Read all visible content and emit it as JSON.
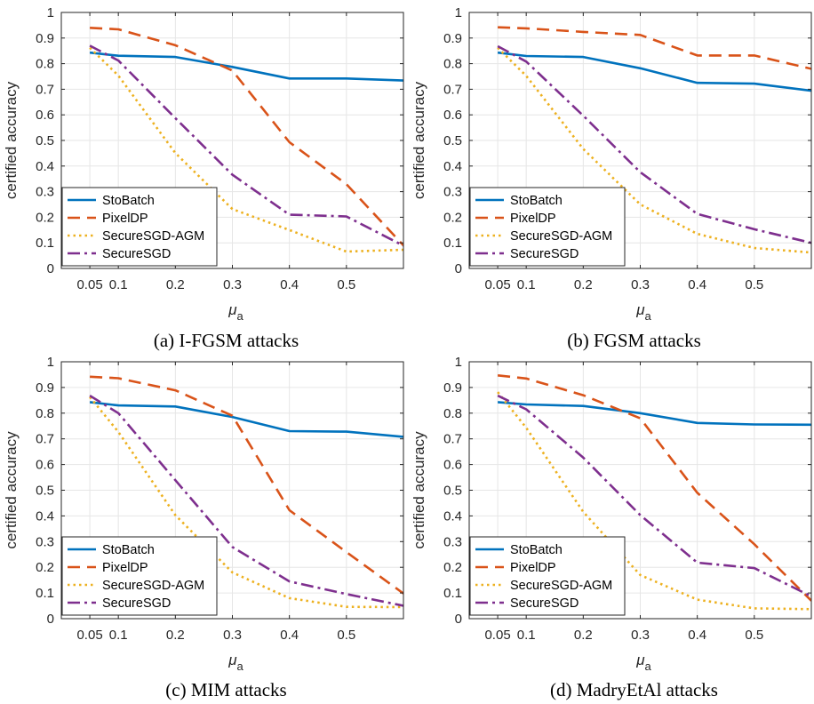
{
  "chart_data": [
    {
      "type": "line",
      "caption": "(a) I-FGSM attacks",
      "xlabel": "μ",
      "xlabel_sub": "a",
      "ylabel": "certified accuracy",
      "xlim": [
        0.0,
        0.6
      ],
      "ylim": [
        0,
        1
      ],
      "xticks": [
        0.05,
        0.1,
        0.2,
        0.3,
        0.4,
        0.5
      ],
      "xtick_labels": [
        "0.05",
        "0.1",
        "0.2",
        "0.3",
        "0.4",
        "0.5"
      ],
      "yticks": [
        0,
        0.1,
        0.2,
        0.3,
        0.4,
        0.5,
        0.6,
        0.7,
        0.8,
        0.9,
        1
      ],
      "ytick_labels": [
        "0",
        "0.1",
        "0.2",
        "0.3",
        "0.4",
        "0.5",
        "0.6",
        "0.7",
        "0.8",
        "0.9",
        "1"
      ],
      "grid": true,
      "legend_position": "bottom-left",
      "x": [
        0.05,
        0.1,
        0.2,
        0.3,
        0.4,
        0.5,
        0.6
      ],
      "series": [
        {
          "name": "StoBatch",
          "values": [
            0.843,
            0.831,
            0.826,
            0.787,
            0.742,
            0.742,
            0.734
          ]
        },
        {
          "name": "PixelDP",
          "values": [
            0.94,
            0.934,
            0.872,
            0.773,
            0.493,
            0.329,
            0.09
          ]
        },
        {
          "name": "SecureSGD-AGM",
          "values": [
            0.862,
            0.753,
            0.451,
            0.232,
            0.15,
            0.066,
            0.073
          ]
        },
        {
          "name": "SecureSGD",
          "values": [
            0.87,
            0.812,
            0.587,
            0.366,
            0.21,
            0.203,
            0.089
          ]
        }
      ]
    },
    {
      "type": "line",
      "caption": "(b) FGSM attacks",
      "xlabel": "μ",
      "xlabel_sub": "a",
      "ylabel": "certified accuracy",
      "xlim": [
        0.0,
        0.6
      ],
      "ylim": [
        0,
        1
      ],
      "xticks": [
        0.05,
        0.1,
        0.2,
        0.3,
        0.4,
        0.5
      ],
      "xtick_labels": [
        "0.05",
        "0.1",
        "0.2",
        "0.3",
        "0.4",
        "0.5"
      ],
      "yticks": [
        0,
        0.1,
        0.2,
        0.3,
        0.4,
        0.5,
        0.6,
        0.7,
        0.8,
        0.9,
        1
      ],
      "ytick_labels": [
        "0",
        "0.1",
        "0.2",
        "0.3",
        "0.4",
        "0.5",
        "0.6",
        "0.7",
        "0.8",
        "0.9",
        "1"
      ],
      "grid": true,
      "legend_position": "bottom-left",
      "x": [
        0.05,
        0.1,
        0.2,
        0.3,
        0.4,
        0.5,
        0.6
      ],
      "series": [
        {
          "name": "StoBatch",
          "values": [
            0.843,
            0.83,
            0.826,
            0.782,
            0.725,
            0.722,
            0.694
          ]
        },
        {
          "name": "PixelDP",
          "values": [
            0.942,
            0.938,
            0.924,
            0.912,
            0.832,
            0.832,
            0.78
          ]
        },
        {
          "name": "SecureSGD-AGM",
          "values": [
            0.862,
            0.752,
            0.467,
            0.25,
            0.135,
            0.08,
            0.062
          ]
        },
        {
          "name": "SecureSGD",
          "values": [
            0.868,
            0.808,
            0.597,
            0.376,
            0.213,
            0.153,
            0.1
          ]
        }
      ]
    },
    {
      "type": "line",
      "caption": "(c) MIM attacks",
      "xlabel": "μ",
      "xlabel_sub": "a",
      "ylabel": "certified accuracy",
      "xlim": [
        0.0,
        0.6
      ],
      "ylim": [
        0,
        1
      ],
      "xticks": [
        0.05,
        0.1,
        0.2,
        0.3,
        0.4,
        0.5
      ],
      "xtick_labels": [
        "0.05",
        "0.1",
        "0.2",
        "0.3",
        "0.4",
        "0.5"
      ],
      "yticks": [
        0,
        0.1,
        0.2,
        0.3,
        0.4,
        0.5,
        0.6,
        0.7,
        0.8,
        0.9,
        1
      ],
      "ytick_labels": [
        "0",
        "0.1",
        "0.2",
        "0.3",
        "0.4",
        "0.5",
        "0.6",
        "0.7",
        "0.8",
        "0.9",
        "1"
      ],
      "grid": true,
      "legend_position": "bottom-left",
      "x": [
        0.05,
        0.1,
        0.2,
        0.3,
        0.4,
        0.5,
        0.6
      ],
      "series": [
        {
          "name": "StoBatch",
          "values": [
            0.843,
            0.83,
            0.826,
            0.785,
            0.73,
            0.728,
            0.708
          ]
        },
        {
          "name": "PixelDP",
          "values": [
            0.942,
            0.936,
            0.889,
            0.79,
            0.422,
            0.259,
            0.098
          ]
        },
        {
          "name": "SecureSGD-AGM",
          "values": [
            0.863,
            0.727,
            0.403,
            0.18,
            0.08,
            0.046,
            0.045
          ]
        },
        {
          "name": "SecureSGD",
          "values": [
            0.868,
            0.8,
            0.539,
            0.279,
            0.145,
            0.096,
            0.05
          ]
        }
      ]
    },
    {
      "type": "line",
      "caption": "(d) MadryEtAl attacks",
      "xlabel": "μ",
      "xlabel_sub": "a",
      "ylabel": "certified accuracy",
      "xlim": [
        0.0,
        0.6
      ],
      "ylim": [
        0,
        1
      ],
      "xticks": [
        0.05,
        0.1,
        0.2,
        0.3,
        0.4,
        0.5
      ],
      "xtick_labels": [
        "0.05",
        "0.1",
        "0.2",
        "0.3",
        "0.4",
        "0.5"
      ],
      "yticks": [
        0,
        0.1,
        0.2,
        0.3,
        0.4,
        0.5,
        0.6,
        0.7,
        0.8,
        0.9,
        1
      ],
      "ytick_labels": [
        "0",
        "0.1",
        "0.2",
        "0.3",
        "0.4",
        "0.5",
        "0.6",
        "0.7",
        "0.8",
        "0.9",
        "1"
      ],
      "grid": true,
      "legend_position": "bottom-left",
      "x": [
        0.05,
        0.1,
        0.2,
        0.3,
        0.4,
        0.5,
        0.6
      ],
      "series": [
        {
          "name": "StoBatch",
          "values": [
            0.843,
            0.834,
            0.828,
            0.8,
            0.762,
            0.756,
            0.755
          ]
        },
        {
          "name": "PixelDP",
          "values": [
            0.947,
            0.935,
            0.87,
            0.78,
            0.49,
            0.29,
            0.07
          ]
        },
        {
          "name": "SecureSGD-AGM",
          "values": [
            0.882,
            0.743,
            0.416,
            0.17,
            0.074,
            0.04,
            0.037
          ]
        },
        {
          "name": "SecureSGD",
          "values": [
            0.868,
            0.815,
            0.627,
            0.403,
            0.218,
            0.197,
            0.087
          ]
        }
      ]
    }
  ],
  "series_styles": [
    {
      "color": "#0072bd",
      "dash": "none"
    },
    {
      "color": "#d95319",
      "dash": "dashed"
    },
    {
      "color": "#edb120",
      "dash": "dotted"
    },
    {
      "color": "#7e2f8e",
      "dash": "dash-dot"
    }
  ]
}
